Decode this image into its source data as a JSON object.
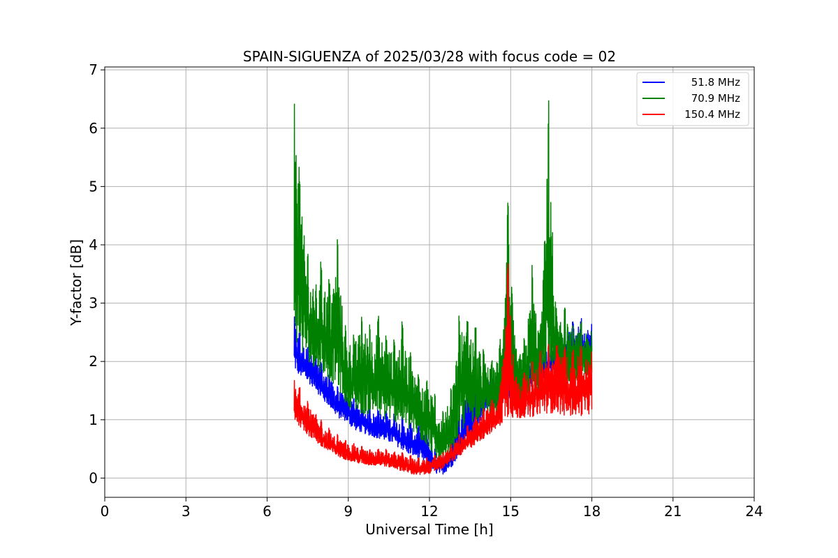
{
  "chart_data": {
    "type": "line",
    "title": "SPAIN-SIGUENZA of 2025/03/28 with focus code = 02",
    "xlabel": "Universal Time [h]",
    "ylabel": "Y-factor [dB]",
    "xlim": [
      0,
      24
    ],
    "ylim": [
      -0.33,
      7.05
    ],
    "xticks": [
      0,
      3,
      6,
      9,
      12,
      15,
      18,
      21,
      24
    ],
    "yticks": [
      0,
      1,
      2,
      3,
      4,
      5,
      6,
      7
    ],
    "grid": true,
    "legend_position": "top-right",
    "series": [
      {
        "name": "51.8 MHz",
        "color": "#0000ff",
        "x": [
          7.0,
          7.2,
          7.5,
          7.8,
          8.0,
          8.3,
          8.6,
          8.9,
          9.2,
          9.5,
          9.8,
          10.1,
          10.4,
          10.7,
          11.0,
          11.3,
          11.6,
          11.9,
          12.2,
          12.5,
          12.8,
          13.1,
          13.4,
          13.7,
          14.0,
          14.3,
          14.6,
          14.9,
          15.2,
          15.5,
          15.8,
          16.1,
          16.4,
          16.7,
          17.0,
          17.3,
          17.6,
          18.0
        ],
        "ymin": [
          1.8,
          1.7,
          1.6,
          1.5,
          1.3,
          1.2,
          1.0,
          0.95,
          0.8,
          0.75,
          0.7,
          0.65,
          0.6,
          0.55,
          0.45,
          0.35,
          0.3,
          0.2,
          0.05,
          0.05,
          0.15,
          0.35,
          0.55,
          0.8,
          1.0,
          1.1,
          1.2,
          1.3,
          1.35,
          1.45,
          1.5,
          1.6,
          1.7,
          1.75,
          1.8,
          1.85,
          1.9,
          1.95
        ],
        "ymax": [
          2.85,
          2.5,
          2.3,
          2.1,
          2.0,
          1.8,
          1.6,
          1.5,
          1.4,
          1.3,
          1.2,
          1.2,
          1.15,
          1.1,
          1.05,
          0.95,
          0.9,
          0.8,
          0.5,
          0.4,
          0.7,
          1.2,
          1.65,
          1.6,
          1.7,
          1.8,
          1.9,
          2.0,
          2.0,
          2.1,
          2.2,
          2.2,
          2.3,
          2.4,
          2.6,
          2.7,
          2.75,
          2.65
        ]
      },
      {
        "name": "70.9 MHz",
        "color": "#008000",
        "x": [
          7.0,
          7.2,
          7.5,
          7.8,
          8.0,
          8.3,
          8.6,
          8.9,
          9.2,
          9.5,
          9.8,
          10.1,
          10.4,
          10.7,
          11.0,
          11.3,
          11.6,
          11.9,
          12.2,
          12.5,
          12.8,
          13.1,
          13.4,
          13.7,
          14.0,
          14.3,
          14.6,
          14.9,
          15.2,
          15.5,
          15.8,
          16.1,
          16.4,
          16.7,
          17.0,
          17.3,
          17.6,
          18.0
        ],
        "ymin": [
          2.2,
          2.0,
          1.9,
          1.8,
          1.7,
          1.6,
          1.4,
          1.2,
          1.1,
          1.0,
          1.0,
          0.95,
          0.9,
          0.9,
          0.8,
          0.7,
          0.6,
          0.5,
          0.3,
          0.1,
          0.3,
          0.6,
          0.8,
          0.9,
          1.0,
          1.0,
          1.05,
          1.1,
          1.15,
          1.2,
          1.25,
          1.3,
          1.35,
          1.4,
          1.45,
          1.5,
          1.55,
          1.6
        ],
        "ymax": [
          6.55,
          5.4,
          3.9,
          3.3,
          3.75,
          3.4,
          4.15,
          2.6,
          2.5,
          2.85,
          2.7,
          2.8,
          2.5,
          2.4,
          2.7,
          2.2,
          1.8,
          1.75,
          1.5,
          1.2,
          1.6,
          2.9,
          2.85,
          2.6,
          2.2,
          2.0,
          2.3,
          4.95,
          2.2,
          2.4,
          3.7,
          2.6,
          6.7,
          2.8,
          3.0,
          2.6,
          2.7,
          2.55
        ]
      },
      {
        "name": "150.4 MHz",
        "color": "#ff0000",
        "x": [
          7.0,
          7.2,
          7.5,
          7.8,
          8.0,
          8.3,
          8.6,
          8.9,
          9.2,
          9.5,
          9.8,
          10.1,
          10.4,
          10.7,
          11.0,
          11.3,
          11.6,
          11.9,
          12.2,
          12.5,
          12.8,
          13.1,
          13.4,
          13.7,
          14.0,
          14.3,
          14.6,
          14.9,
          15.2,
          15.5,
          15.8,
          16.1,
          16.4,
          16.7,
          17.0,
          17.3,
          17.6,
          18.0
        ],
        "ymin": [
          0.95,
          0.85,
          0.7,
          0.6,
          0.5,
          0.4,
          0.35,
          0.3,
          0.25,
          0.22,
          0.2,
          0.2,
          0.18,
          0.15,
          0.1,
          0.05,
          0.02,
          0.05,
          0.1,
          0.15,
          0.25,
          0.35,
          0.45,
          0.55,
          0.65,
          0.75,
          0.85,
          0.9,
          0.95,
          1.0,
          1.0,
          1.05,
          1.05,
          1.05,
          1.0,
          1.0,
          1.0,
          1.05
        ],
        "ymax": [
          1.7,
          1.6,
          1.35,
          1.1,
          1.0,
          0.85,
          0.75,
          0.65,
          0.6,
          0.55,
          0.5,
          0.5,
          0.5,
          0.45,
          0.45,
          0.4,
          0.35,
          0.35,
          0.4,
          0.45,
          0.6,
          0.75,
          0.9,
          1.05,
          1.2,
          1.35,
          1.5,
          3.8,
          1.75,
          1.85,
          2.0,
          2.2,
          2.3,
          2.35,
          2.3,
          2.25,
          2.3,
          2.2
        ]
      }
    ]
  }
}
